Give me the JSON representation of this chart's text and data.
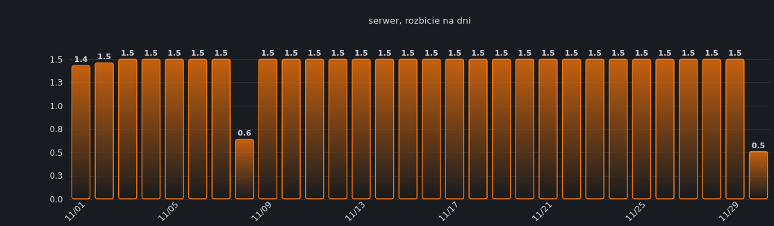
{
  "chart_data": {
    "type": "bar",
    "title": "serwer, rozbicie na dni",
    "categories": [
      "11/01",
      null,
      null,
      null,
      "11/05",
      null,
      null,
      null,
      "11/09",
      null,
      null,
      null,
      "11/13",
      null,
      null,
      null,
      "11/17",
      null,
      null,
      null,
      "11/21",
      null,
      null,
      null,
      "11/25",
      null,
      null,
      null,
      "11/29",
      null
    ],
    "values": [
      1.43,
      1.46,
      1.5,
      1.5,
      1.5,
      1.5,
      1.5,
      0.64,
      1.5,
      1.5,
      1.5,
      1.5,
      1.5,
      1.5,
      1.5,
      1.5,
      1.5,
      1.5,
      1.5,
      1.5,
      1.5,
      1.5,
      1.5,
      1.5,
      1.5,
      1.5,
      1.5,
      1.5,
      1.5,
      0.51
    ],
    "value_labels": [
      "1.4",
      "1.5",
      "1.5",
      "1.5",
      "1.5",
      "1.5",
      "1.5",
      "0.6",
      "1.5",
      "1.5",
      "1.5",
      "1.5",
      "1.5",
      "1.5",
      "1.5",
      "1.5",
      "1.5",
      "1.5",
      "1.5",
      "1.5",
      "1.5",
      "1.5",
      "1.5",
      "1.5",
      "1.5",
      "1.5",
      "1.5",
      "1.5",
      "1.5",
      "0.5"
    ],
    "color": "#ff780a",
    "ylim": [
      0,
      1.5
    ],
    "yticks": [
      {
        "value": 0,
        "label": "0.0"
      },
      {
        "value": 0.25,
        "label": "0.3"
      },
      0.5,
      {
        "value": 0.75,
        "label": "0.8"
      },
      {
        "value": 1,
        "label": "1.0"
      },
      {
        "value": 1.25,
        "label": "1.3"
      },
      1.5
    ],
    "grid": "y"
  }
}
